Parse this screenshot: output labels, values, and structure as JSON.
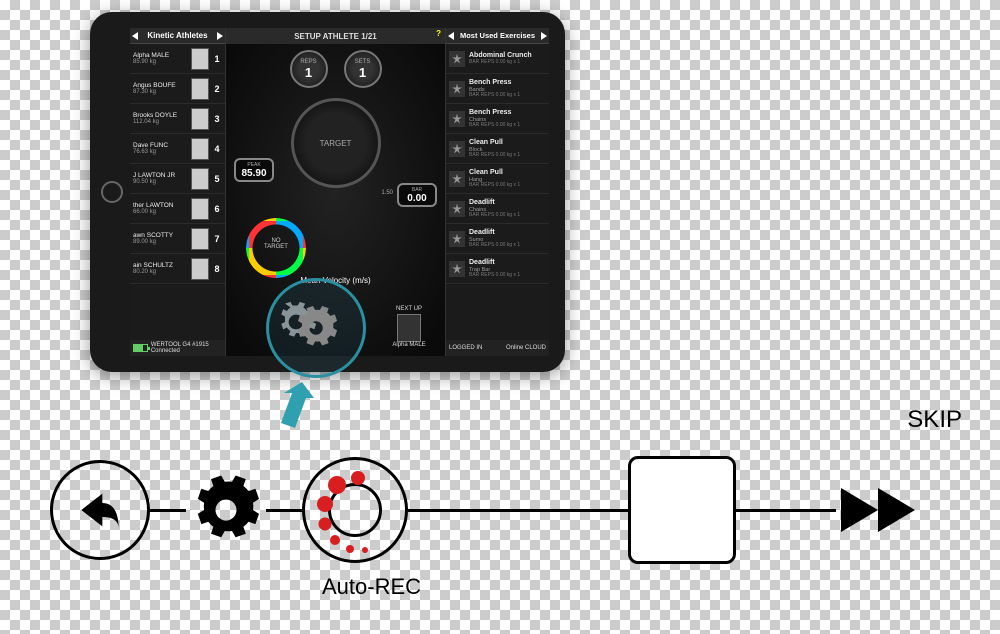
{
  "athletes_header": "Kinetic Athletes",
  "athletes": [
    {
      "name": "Alpha MALE",
      "wt": "85.90 kg",
      "rank": "1"
    },
    {
      "name": "Angus BOUFE",
      "wt": "87.30 kg",
      "rank": "2"
    },
    {
      "name": "Brooks DOYLE",
      "wt": "112.04 kg",
      "rank": "3"
    },
    {
      "name": "Dave FUNC",
      "wt": "76.63 kg",
      "rank": "4"
    },
    {
      "name": "J LAWTON JR",
      "wt": "90.50 kg",
      "rank": "5"
    },
    {
      "name": "ther LAWTON",
      "wt": "66.00 kg",
      "rank": "6"
    },
    {
      "name": "awn SCOTTY",
      "wt": "89.00 kg",
      "rank": "7"
    },
    {
      "name": "ain SCHULTZ",
      "wt": "80.20 kg",
      "rank": "8"
    }
  ],
  "footer_tool": "WERTOOL G4 #1915 Connected",
  "center_header": "SETUP ATHLETE 1/21",
  "exercise_title": "Abdominal Crunch",
  "reps_label": "REPS",
  "reps_val": "1",
  "sets_label": "SETS",
  "sets_val": "1",
  "dial_text": "TARGET",
  "peak_label": "PEAK",
  "peak_val": "85.90",
  "bar_label": "BAR",
  "bar_val": "0.00",
  "ring_label": "NO TARGET",
  "mean_v": "Mean Velocity (m/s)",
  "scale_right": "1.50",
  "next_up": "NEXT UP",
  "next_name": "Alpha MALE",
  "exercises_header": "Most Used Exercises",
  "exercises": [
    {
      "n": "Abdominal Crunch",
      "s": "",
      "d": "BAR REPS  0.00 kg x 1"
    },
    {
      "n": "Bench Press",
      "s": "Bands",
      "d": "BAR REPS  0.00 kg x 1"
    },
    {
      "n": "Bench Press",
      "s": "Chains",
      "d": "BAR REPS  0.00 kg x 1"
    },
    {
      "n": "Clean Pull",
      "s": "Block",
      "d": "BAR REPS  0.00 kg x 1"
    },
    {
      "n": "Clean Pull",
      "s": "Hang",
      "d": "BAR REPS  0.00 kg x 1"
    },
    {
      "n": "Deadlift",
      "s": "Chains",
      "d": "BAR REPS  0.00 kg x 1"
    },
    {
      "n": "Deadlift",
      "s": "Sumo",
      "d": "BAR REPS  0.00 kg x 1"
    },
    {
      "n": "Deadlift",
      "s": "Trap Bar",
      "d": "BAR REPS  0.00 kg x 1"
    }
  ],
  "logged_in": "LOGGED IN",
  "online": "Online  CLOUD",
  "flow_autorec": "Auto-REC",
  "flow_skip": "SKIP",
  "colors": {
    "teal": "#2a8fa0",
    "arrow": "#2ea0b0",
    "red": "#d81e1e"
  }
}
